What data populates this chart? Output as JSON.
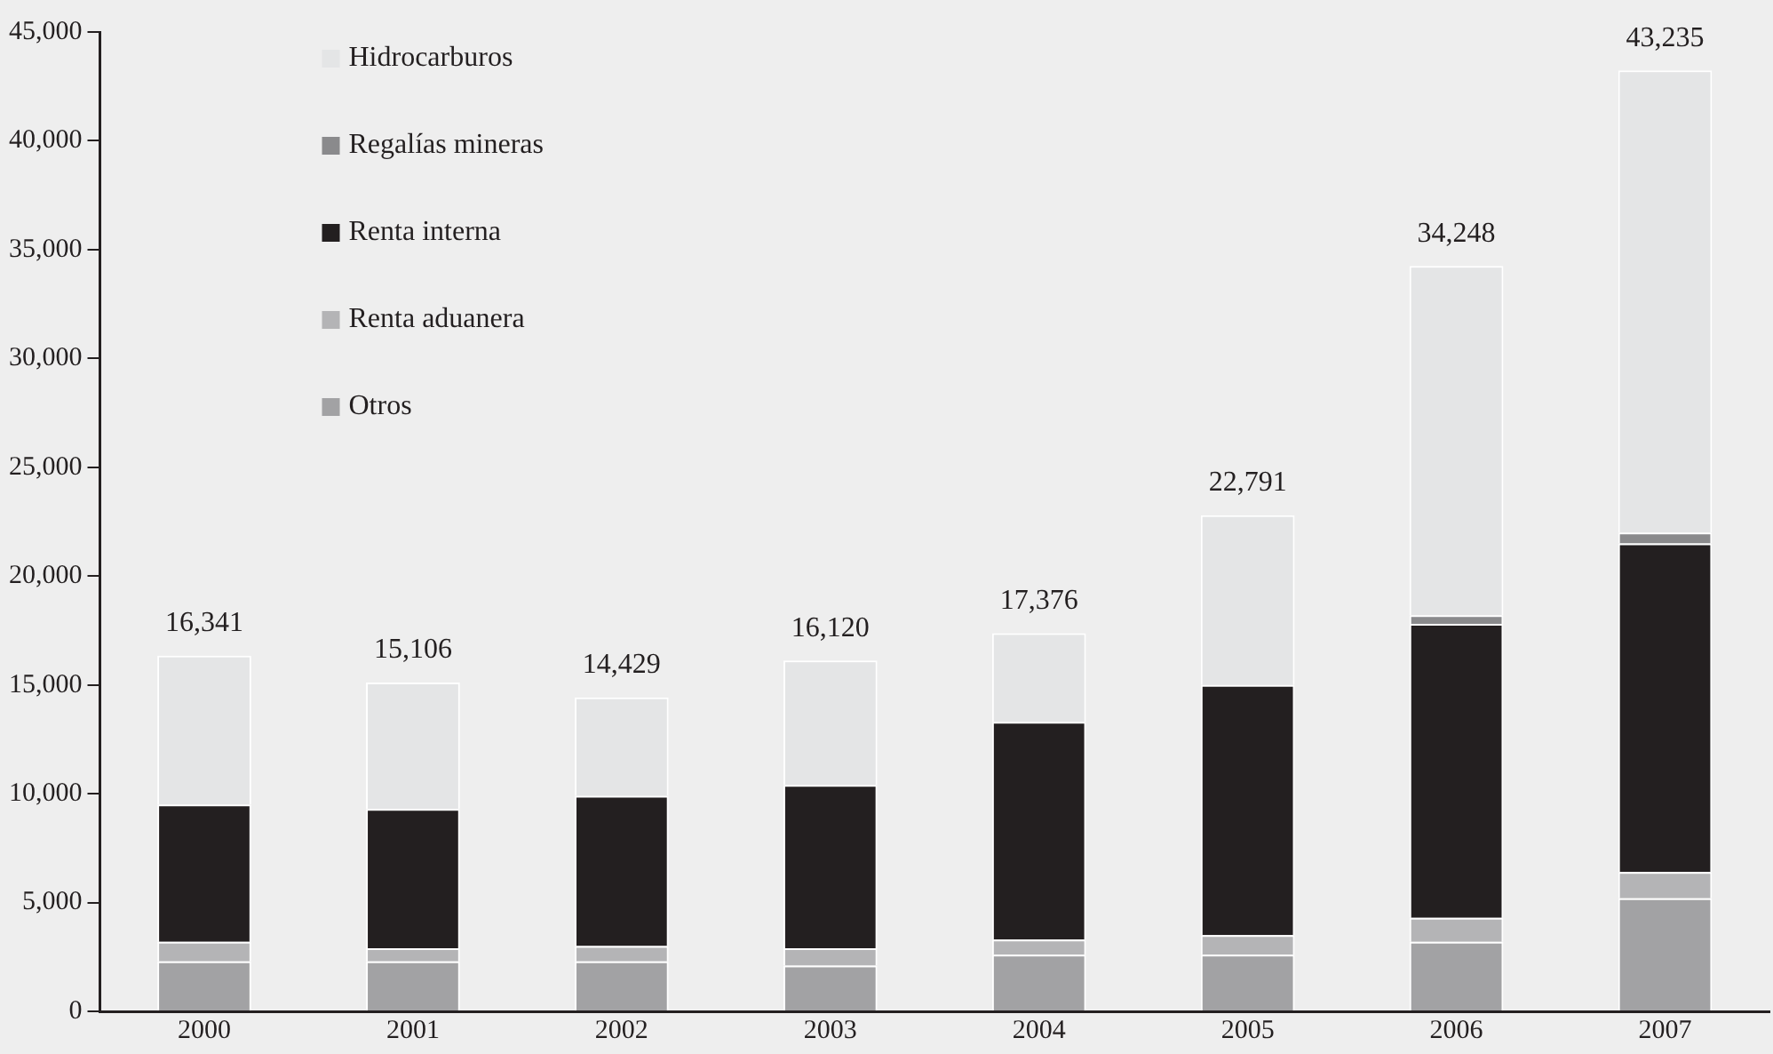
{
  "chart_data": {
    "type": "bar",
    "stacked": true,
    "categories": [
      "2000",
      "2001",
      "2002",
      "2003",
      "2004",
      "2005",
      "2006",
      "2007"
    ],
    "series": [
      {
        "name": "Otros",
        "color": "#a2a2a4",
        "values": [
          2300,
          2300,
          2300,
          2100,
          2600,
          2600,
          3200,
          5200
        ]
      },
      {
        "name": "Renta aduanera",
        "color": "#b4b4b6",
        "values": [
          900,
          600,
          700,
          800,
          700,
          900,
          1100,
          1200
        ]
      },
      {
        "name": "Renta interna",
        "color": "#231f20",
        "values": [
          6300,
          6400,
          6900,
          7500,
          10000,
          11500,
          13500,
          15100
        ]
      },
      {
        "name": "Regalías mineras",
        "color": "#8a8a8c",
        "values": [
          null,
          null,
          null,
          null,
          null,
          null,
          400,
          500
        ]
      },
      {
        "name": "Hidrocarburos",
        "color": "#e4e5e6",
        "values": [
          6841,
          5806,
          4529,
          5720,
          4076,
          7791,
          16048,
          21235
        ]
      }
    ],
    "ylim": [
      0,
      45000
    ],
    "yticks": [
      {
        "value": 0,
        "label": "0"
      },
      {
        "value": 5000,
        "label": "5,000"
      },
      {
        "value": 10000,
        "label": "10,000"
      },
      {
        "value": 15000,
        "label": "15,000"
      },
      {
        "value": 20000,
        "label": "20,000"
      },
      {
        "value": 25000,
        "label": "25,000"
      },
      {
        "value": 30000,
        "label": "30,000"
      },
      {
        "value": 35000,
        "label": "35,000"
      },
      {
        "value": 40000,
        "label": "40,000"
      },
      {
        "value": 45000,
        "label": "45,000"
      }
    ],
    "totals": [
      "16,341",
      "15,106",
      "14,429",
      "16,120",
      "17,376",
      "22,791",
      "34,248",
      "43,235"
    ],
    "legend": "top left",
    "grid": false
  }
}
